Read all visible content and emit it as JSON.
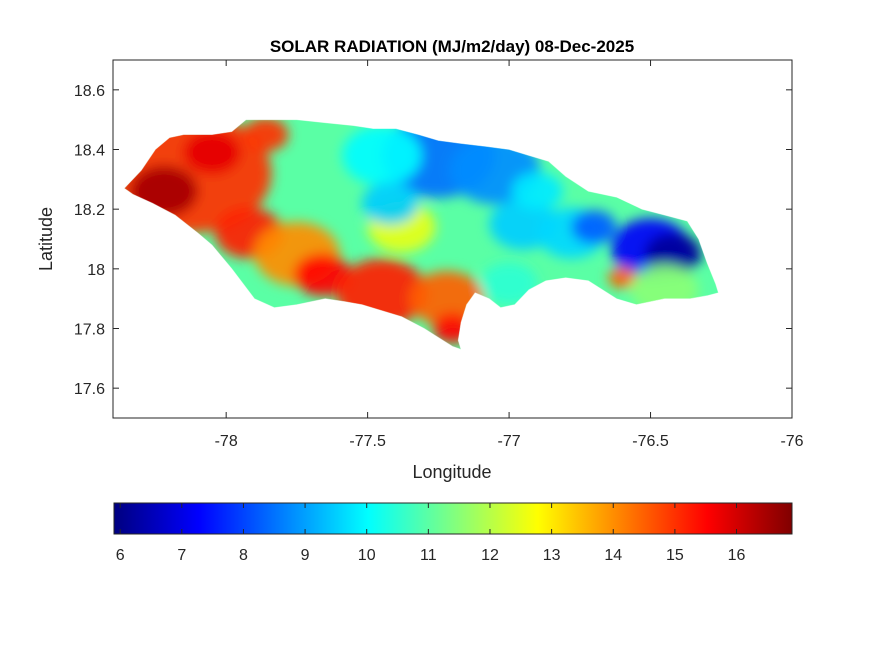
{
  "chart_data": {
    "type": "heatmap",
    "title": "SOLAR RADIATION (MJ/m2/day) 08-Dec-2025",
    "xlabel": "Longitude",
    "ylabel": "Latitude",
    "xlim": [
      -78.4,
      -76
    ],
    "ylim": [
      17.5,
      18.7
    ],
    "xticks": [
      -78,
      -77.5,
      -77,
      -76.5,
      -76
    ],
    "yticks": [
      17.6,
      17.8,
      18,
      18.2,
      18.4,
      18.6
    ],
    "grid": false,
    "colorbar": {
      "colormap": "jet",
      "range": [
        5.9,
        16.9
      ],
      "ticks": [
        6,
        7,
        8,
        9,
        10,
        11,
        12,
        13,
        14,
        15,
        16
      ],
      "placement": "bottom"
    },
    "region_outline": [
      [
        -78.36,
        18.27
      ],
      [
        -78.3,
        18.33
      ],
      [
        -78.25,
        18.4
      ],
      [
        -78.2,
        18.44
      ],
      [
        -78.15,
        18.45
      ],
      [
        -78.05,
        18.45
      ],
      [
        -77.98,
        18.46
      ],
      [
        -77.93,
        18.5
      ],
      [
        -77.85,
        18.5
      ],
      [
        -77.75,
        18.5
      ],
      [
        -77.65,
        18.49
      ],
      [
        -77.55,
        18.48
      ],
      [
        -77.48,
        18.47
      ],
      [
        -77.4,
        18.47
      ],
      [
        -77.32,
        18.45
      ],
      [
        -77.25,
        18.43
      ],
      [
        -77.17,
        18.42
      ],
      [
        -77.08,
        18.41
      ],
      [
        -77.0,
        18.4
      ],
      [
        -76.93,
        18.38
      ],
      [
        -76.86,
        18.36
      ],
      [
        -76.8,
        18.31
      ],
      [
        -76.72,
        18.26
      ],
      [
        -76.62,
        18.24
      ],
      [
        -76.53,
        18.2
      ],
      [
        -76.45,
        18.18
      ],
      [
        -76.37,
        18.16
      ],
      [
        -76.33,
        18.1
      ],
      [
        -76.3,
        18.02
      ],
      [
        -76.27,
        17.95
      ],
      [
        -76.26,
        17.92
      ],
      [
        -76.3,
        17.91
      ],
      [
        -76.36,
        17.9
      ],
      [
        -76.45,
        17.9
      ],
      [
        -76.55,
        17.88
      ],
      [
        -76.62,
        17.9
      ],
      [
        -76.72,
        17.96
      ],
      [
        -76.8,
        17.97
      ],
      [
        -76.87,
        17.96
      ],
      [
        -76.93,
        17.93
      ],
      [
        -76.98,
        17.88
      ],
      [
        -77.03,
        17.87
      ],
      [
        -77.07,
        17.9
      ],
      [
        -77.12,
        17.92
      ],
      [
        -77.15,
        17.88
      ],
      [
        -77.17,
        17.82
      ],
      [
        -77.18,
        17.76
      ],
      [
        -77.17,
        17.73
      ],
      [
        -77.2,
        17.74
      ],
      [
        -77.25,
        17.77
      ],
      [
        -77.3,
        17.8
      ],
      [
        -77.38,
        17.84
      ],
      [
        -77.45,
        17.86
      ],
      [
        -77.52,
        17.88
      ],
      [
        -77.58,
        17.89
      ],
      [
        -77.65,
        17.9
      ],
      [
        -77.75,
        17.88
      ],
      [
        -77.83,
        17.87
      ],
      [
        -77.9,
        17.9
      ],
      [
        -77.98,
        18.0
      ],
      [
        -78.05,
        18.08
      ],
      [
        -78.1,
        18.12
      ],
      [
        -78.18,
        18.18
      ],
      [
        -78.26,
        18.22
      ],
      [
        -78.33,
        18.25
      ],
      [
        -78.36,
        18.27
      ]
    ],
    "value_blobs": [
      {
        "lon": -77.5,
        "lat": 18.18,
        "r": 0.9,
        "value": 11
      },
      {
        "lon": -78.12,
        "lat": 18.32,
        "r": 0.28,
        "value": 15
      },
      {
        "lon": -78.22,
        "lat": 18.26,
        "r": 0.12,
        "value": 16.5
      },
      {
        "lon": -78.05,
        "lat": 18.39,
        "r": 0.1,
        "value": 15.8
      },
      {
        "lon": -77.86,
        "lat": 18.45,
        "r": 0.08,
        "value": 15
      },
      {
        "lon": -77.92,
        "lat": 18.12,
        "r": 0.12,
        "value": 15.2
      },
      {
        "lon": -77.75,
        "lat": 18.05,
        "r": 0.15,
        "value": 14
      },
      {
        "lon": -77.66,
        "lat": 17.98,
        "r": 0.1,
        "value": 15.5
      },
      {
        "lon": -77.45,
        "lat": 17.92,
        "r": 0.16,
        "value": 15.2
      },
      {
        "lon": -77.22,
        "lat": 17.9,
        "r": 0.13,
        "value": 14.5
      },
      {
        "lon": -77.2,
        "lat": 17.8,
        "r": 0.07,
        "value": 15.5
      },
      {
        "lon": -77.38,
        "lat": 18.14,
        "r": 0.12,
        "value": 12.5
      },
      {
        "lon": -77.25,
        "lat": 18.38,
        "r": 0.2,
        "value": 8.5
      },
      {
        "lon": -77.05,
        "lat": 18.33,
        "r": 0.16,
        "value": 8.8
      },
      {
        "lon": -77.45,
        "lat": 18.38,
        "r": 0.14,
        "value": 10
      },
      {
        "lon": -77.42,
        "lat": 18.22,
        "r": 0.1,
        "value": 9.5
      },
      {
        "lon": -76.95,
        "lat": 18.15,
        "r": 0.12,
        "value": 9.5
      },
      {
        "lon": -76.78,
        "lat": 18.12,
        "r": 0.12,
        "value": 9.6
      },
      {
        "lon": -76.7,
        "lat": 18.14,
        "r": 0.08,
        "value": 8.3
      },
      {
        "lon": -76.5,
        "lat": 18.07,
        "r": 0.14,
        "value": 7.2
      },
      {
        "lon": -76.42,
        "lat": 18.05,
        "r": 0.1,
        "value": 6.2
      },
      {
        "lon": -76.6,
        "lat": 17.97,
        "r": 0.05,
        "value": 14.5
      },
      {
        "lon": -76.45,
        "lat": 17.93,
        "r": 0.12,
        "value": 11.5
      },
      {
        "lon": -77.0,
        "lat": 17.95,
        "r": 0.1,
        "value": 10.5
      },
      {
        "lon": -76.9,
        "lat": 18.26,
        "r": 0.09,
        "value": 9.8
      }
    ]
  }
}
